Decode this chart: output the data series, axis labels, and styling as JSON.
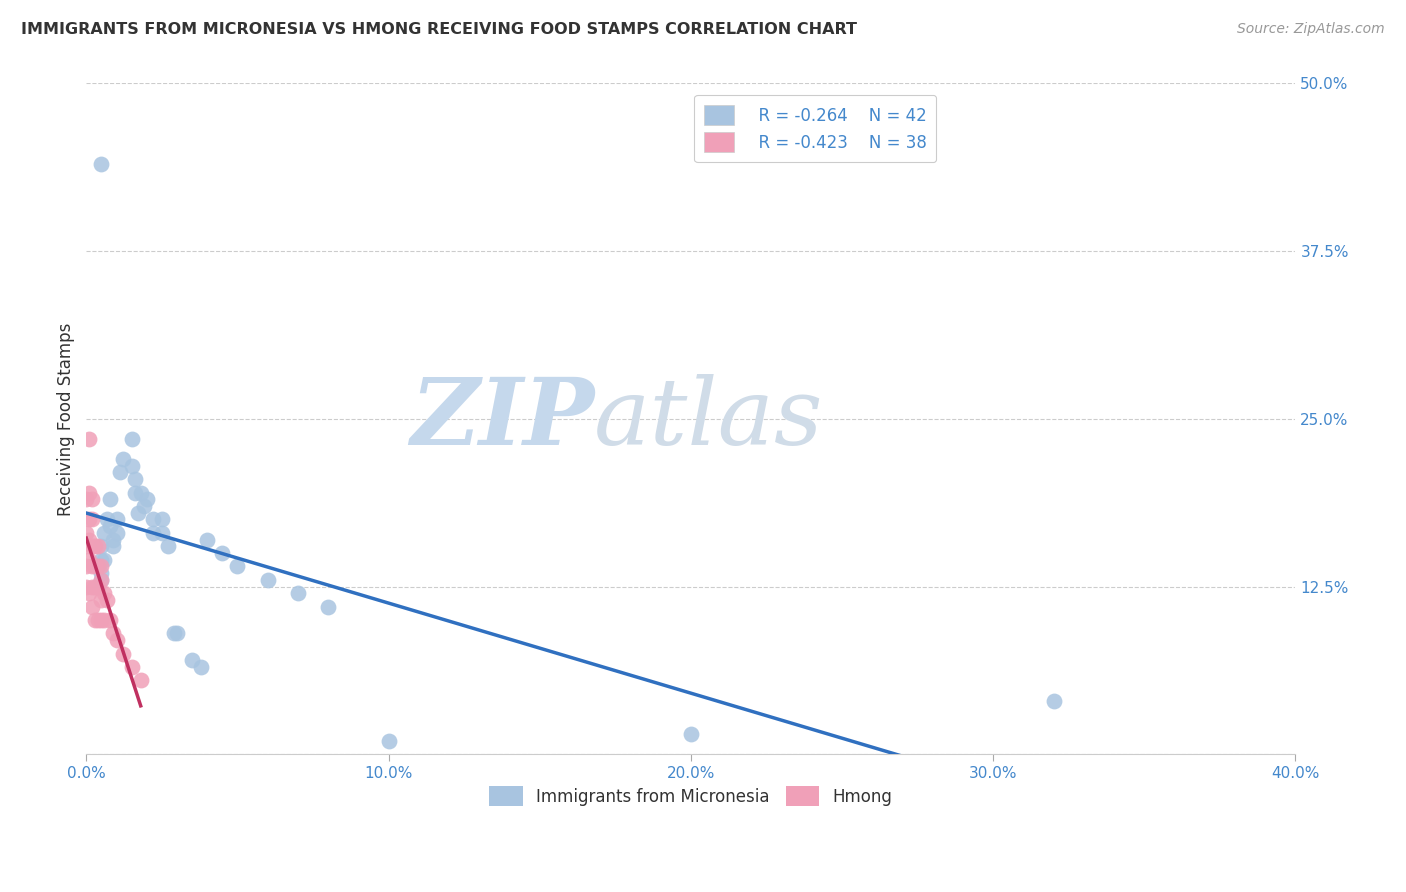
{
  "title": "IMMIGRANTS FROM MICRONESIA VS HMONG RECEIVING FOOD STAMPS CORRELATION CHART",
  "source": "Source: ZipAtlas.com",
  "ylabel": "Receiving Food Stamps",
  "xlabel": "",
  "xlim": [
    0.0,
    40.0
  ],
  "ylim": [
    0.0,
    50.0
  ],
  "xticks": [
    0.0,
    10.0,
    20.0,
    30.0,
    40.0
  ],
  "yticks": [
    0.0,
    12.5,
    25.0,
    37.5,
    50.0
  ],
  "xticklabels": [
    "0.0%",
    "10.0%",
    "20.0%",
    "30.0%",
    "40.0%"
  ],
  "yticklabels": [
    "",
    "12.5%",
    "25.0%",
    "37.5%",
    "50.0%"
  ],
  "micronesia_color": "#a8c4e0",
  "hmong_color": "#f0a0b8",
  "trendline_micro_color": "#3070c0",
  "trendline_hmong_color": "#c03060",
  "watermark_zip": "ZIP",
  "watermark_atlas": "atlas",
  "legend_micro_r": "R = -0.264",
  "legend_micro_n": "N = 42",
  "legend_hmong_r": "R = -0.423",
  "legend_hmong_n": "N = 38",
  "micro_x": [
    0.5,
    0.5,
    0.5,
    0.5,
    0.5,
    0.6,
    0.6,
    0.7,
    0.8,
    0.8,
    0.9,
    0.9,
    1.0,
    1.0,
    1.1,
    1.2,
    1.5,
    1.5,
    1.6,
    1.6,
    1.7,
    1.8,
    1.9,
    2.0,
    2.2,
    2.2,
    2.5,
    2.5,
    2.7,
    2.9,
    3.0,
    3.5,
    3.8,
    4.0,
    4.5,
    5.0,
    6.0,
    7.0,
    8.0,
    10.0,
    20.0,
    32.0
  ],
  "micro_y": [
    44.0,
    15.5,
    14.5,
    13.5,
    13.0,
    16.5,
    14.5,
    17.5,
    19.0,
    17.0,
    16.0,
    15.5,
    17.5,
    16.5,
    21.0,
    22.0,
    23.5,
    21.5,
    20.5,
    19.5,
    18.0,
    19.5,
    18.5,
    19.0,
    17.5,
    16.5,
    17.5,
    16.5,
    15.5,
    9.0,
    9.0,
    7.0,
    6.5,
    16.0,
    15.0,
    14.0,
    13.0,
    12.0,
    11.0,
    1.0,
    1.5,
    4.0
  ],
  "hmong_x": [
    0.0,
    0.0,
    0.0,
    0.0,
    0.0,
    0.1,
    0.1,
    0.1,
    0.1,
    0.1,
    0.1,
    0.2,
    0.2,
    0.2,
    0.2,
    0.2,
    0.2,
    0.3,
    0.3,
    0.3,
    0.3,
    0.4,
    0.4,
    0.4,
    0.4,
    0.5,
    0.5,
    0.5,
    0.5,
    0.6,
    0.6,
    0.7,
    0.8,
    0.9,
    1.0,
    1.2,
    1.5,
    1.8
  ],
  "hmong_y": [
    19.0,
    16.5,
    15.5,
    14.0,
    12.5,
    23.5,
    19.5,
    17.5,
    16.0,
    14.5,
    12.0,
    19.0,
    17.5,
    15.5,
    14.0,
    12.5,
    11.0,
    15.5,
    14.0,
    12.5,
    10.0,
    15.5,
    14.0,
    12.5,
    10.0,
    14.0,
    13.0,
    11.5,
    10.0,
    12.0,
    10.0,
    11.5,
    10.0,
    9.0,
    8.5,
    7.5,
    6.5,
    5.5
  ],
  "background_color": "#ffffff",
  "grid_color": "#cccccc",
  "micro_trendline_x": [
    0.0,
    40.0
  ],
  "hmong_trendline_x": [
    0.0,
    1.8
  ]
}
